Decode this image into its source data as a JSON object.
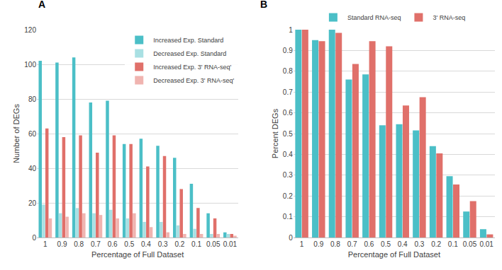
{
  "chart_data": [
    {
      "type": "bar",
      "title": "A",
      "x_label": "Percentage of Full Dataset",
      "y_label": "Number of DEGs",
      "categories": [
        "1",
        "0.9",
        "0.8",
        "0.7",
        "0.6",
        "0.5",
        "0.4",
        "0.3",
        "0.2",
        "0.1",
        "0.05",
        "0.01"
      ],
      "series": [
        {
          "name": "Increased Exp. Standard",
          "color": "#4bbfc7",
          "values": [
            102,
            101,
            104,
            78,
            79,
            54,
            57,
            53,
            46,
            31,
            14,
            3
          ]
        },
        {
          "name": "Decreased Exp. Standard",
          "color": "#a9e0e3",
          "values": [
            19,
            14,
            17,
            14,
            16,
            11,
            9,
            9,
            7,
            5,
            2,
            2
          ]
        },
        {
          "name": "Increased Exp. 3' RNA-seq'",
          "color": "#e0706a",
          "values": [
            63,
            58,
            59,
            49,
            59,
            54,
            41,
            47,
            28,
            17,
            11,
            2
          ]
        },
        {
          "name": "Decreased Exp. 3' RNA-seq'",
          "color": "#f0b4b0",
          "values": [
            11,
            12,
            14,
            13,
            11,
            14,
            6,
            3,
            2,
            2,
            2,
            1
          ]
        }
      ],
      "ylim": [
        0,
        120
      ],
      "yticks": [
        0,
        20,
        40,
        60,
        80,
        100,
        120
      ],
      "grid": true,
      "legend": "top right"
    },
    {
      "type": "bar",
      "title": "B",
      "x_label": "Percentage of Full Dataset",
      "y_label": "Percent DEGs",
      "categories": [
        "1",
        "0.9",
        "0.8",
        "0.7",
        "0.6",
        "0.5",
        "0.4",
        "0.3",
        "0.2",
        "0.1",
        "0.05",
        "0.01"
      ],
      "series": [
        {
          "name": "Standard RNA-seq",
          "color": "#4bbfc7",
          "values": [
            1,
            0.95,
            1,
            0.76,
            0.785,
            0.54,
            0.545,
            0.515,
            0.44,
            0.295,
            0.125,
            0.04
          ]
        },
        {
          "name": "3' RNA-seq",
          "color": "#e0706a",
          "values": [
            1,
            0.945,
            0.985,
            0.835,
            0.945,
            0.92,
            0.635,
            0.675,
            0.405,
            0.255,
            0.175,
            0.015
          ]
        }
      ],
      "ylim": [
        0,
        1
      ],
      "yticks": [
        0,
        0.1,
        0.2,
        0.3,
        0.4,
        0.5,
        0.6,
        0.7,
        0.8,
        0.9,
        1
      ],
      "grid": true,
      "legend": "top"
    }
  ]
}
